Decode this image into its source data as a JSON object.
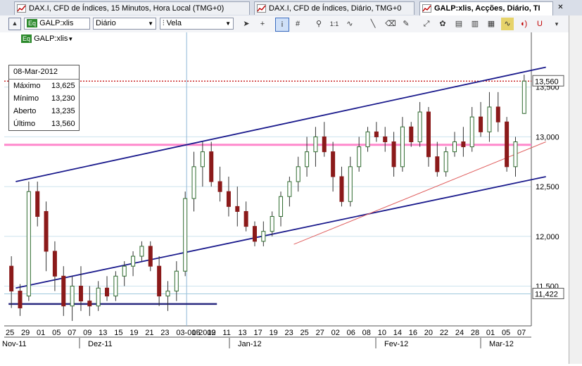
{
  "tabs": [
    {
      "label": "DAX.I, CFD de Índices, 15 Minutos, Hora Local (TMG+0)",
      "active": false
    },
    {
      "label": "DAX.I, CFD de Índices, Diário, TMG+0",
      "active": false
    },
    {
      "label": "GALP:xlis, Acções, Diário, TI",
      "active": true
    }
  ],
  "toolbar": {
    "symbol": "GALP:xlis",
    "symbol_badge": "Eq",
    "period": "Diário",
    "chart_style": "Vela"
  },
  "legend": {
    "badge": "Eq",
    "symbol": "GALP:xlis"
  },
  "infobox": {
    "date": "08-Mar-2012",
    "rows": [
      {
        "label": "Máximo",
        "value": "13,625"
      },
      {
        "label": "Mínimo",
        "value": "13,230"
      },
      {
        "label": "Aberto",
        "value": "13,235"
      },
      {
        "label": "Último",
        "value": "13,560"
      }
    ]
  },
  "colors": {
    "up": "#2e6b2e",
    "down": "#8b1a1a",
    "channel": "#1a1a8c",
    "resistance": "#ff88cc",
    "accent": "#c00000"
  },
  "chart_data": {
    "type": "candlestick",
    "yaxis": {
      "min": 11100,
      "max": 14050,
      "ticks": [
        11500,
        12000,
        12500,
        13000,
        13500
      ],
      "tick_labels": [
        "11,500",
        "12,000",
        "12,500",
        "13,000",
        "13,500"
      ]
    },
    "price_labels": [
      "13,560",
      "11,422"
    ],
    "hlines": [
      13560,
      12920,
      11422
    ],
    "date_labels": [
      "25",
      "29",
      "01",
      "05",
      "07",
      "09",
      "13",
      "15",
      "19",
      "21",
      "23",
      "03-01-2012",
      "05",
      "09",
      "11",
      "13",
      "17",
      "19",
      "23",
      "25",
      "27",
      "02",
      "06",
      "08",
      "10",
      "14",
      "16",
      "20",
      "22",
      "24",
      "28",
      "01",
      "05",
      "07"
    ],
    "month_labels": [
      "Nov-11",
      "Dez-11",
      "Jan-12",
      "Fev-12",
      "Mar-12"
    ],
    "candles": [
      [
        11700,
        11800,
        11280,
        11450
      ],
      [
        11450,
        11520,
        11200,
        11280
      ],
      [
        11400,
        12550,
        11350,
        12450
      ],
      [
        12450,
        12550,
        12100,
        12200
      ],
      [
        12250,
        12350,
        11650,
        11850
      ],
      [
        11850,
        11950,
        11450,
        11600
      ],
      [
        11600,
        11700,
        11200,
        11300
      ],
      [
        11300,
        11600,
        11150,
        11500
      ],
      [
        11500,
        11700,
        11250,
        11350
      ],
      [
        11350,
        11500,
        11200,
        11300
      ],
      [
        11300,
        11550,
        11250,
        11480
      ],
      [
        11480,
        11600,
        11350,
        11400
      ],
      [
        11400,
        11650,
        11350,
        11600
      ],
      [
        11600,
        11750,
        11500,
        11700
      ],
      [
        11700,
        11850,
        11600,
        11800
      ],
      [
        11800,
        11950,
        11750,
        11900
      ],
      [
        11900,
        11950,
        11650,
        11700
      ],
      [
        11700,
        11800,
        11300,
        11400
      ],
      [
        11400,
        11550,
        11250,
        11450
      ],
      [
        11450,
        11750,
        11350,
        11650
      ],
      [
        11650,
        12450,
        11600,
        12380
      ],
      [
        12380,
        12850,
        12250,
        12700
      ],
      [
        12700,
        12950,
        12500,
        12850
      ],
      [
        12850,
        12950,
        12500,
        12550
      ],
      [
        12550,
        12700,
        12350,
        12450
      ],
      [
        12450,
        12600,
        12200,
        12300
      ],
      [
        12300,
        12500,
        12100,
        12250
      ],
      [
        12250,
        12350,
        12050,
        12100
      ],
      [
        12100,
        12150,
        11900,
        11950
      ],
      [
        11950,
        12150,
        11900,
        12050
      ],
      [
        12050,
        12250,
        12000,
        12200
      ],
      [
        12200,
        12450,
        12100,
        12400
      ],
      [
        12400,
        12600,
        12300,
        12550
      ],
      [
        12550,
        12800,
        12450,
        12700
      ],
      [
        12700,
        13000,
        12600,
        12850
      ],
      [
        12850,
        13100,
        12700,
        13000
      ],
      [
        13000,
        13150,
        12800,
        12850
      ],
      [
        12850,
        12950,
        12450,
        12600
      ],
      [
        12600,
        12700,
        12300,
        12350
      ],
      [
        12350,
        12800,
        12300,
        12700
      ],
      [
        12700,
        13000,
        12650,
        12900
      ],
      [
        12900,
        13100,
        12850,
        13050
      ],
      [
        13050,
        13150,
        12950,
        13000
      ],
      [
        13000,
        13100,
        12850,
        12950
      ],
      [
        12950,
        13050,
        12600,
        12700
      ],
      [
        12700,
        13200,
        12650,
        13100
      ],
      [
        13100,
        13150,
        12900,
        12950
      ],
      [
        12950,
        13350,
        12900,
        13250
      ],
      [
        13250,
        13300,
        12700,
        12800
      ],
      [
        12800,
        12950,
        12600,
        12650
      ],
      [
        12650,
        12900,
        12600,
        12850
      ],
      [
        12850,
        13050,
        12800,
        12950
      ],
      [
        12950,
        13100,
        12800,
        12900
      ],
      [
        12900,
        13300,
        12850,
        13200
      ],
      [
        13200,
        13350,
        13000,
        13050
      ],
      [
        13050,
        13450,
        12950,
        13300
      ],
      [
        13300,
        13450,
        13050,
        13150
      ],
      [
        13150,
        13200,
        12650,
        12700
      ],
      [
        12700,
        13000,
        12600,
        12950
      ],
      [
        13235,
        13625,
        13230,
        13560
      ]
    ],
    "lines": [
      {
        "points": [
          [
            0.5,
            12550
          ],
          [
            61.5,
            13700
          ]
        ],
        "color": "#1a1a8c"
      },
      {
        "points": [
          [
            0.5,
            11480
          ],
          [
            61.5,
            12600
          ]
        ],
        "color": "#1a1a8c"
      },
      {
        "points": [
          [
            32.5,
            11920
          ],
          [
            61.5,
            12950
          ]
        ],
        "color": "#e06060"
      }
    ]
  }
}
